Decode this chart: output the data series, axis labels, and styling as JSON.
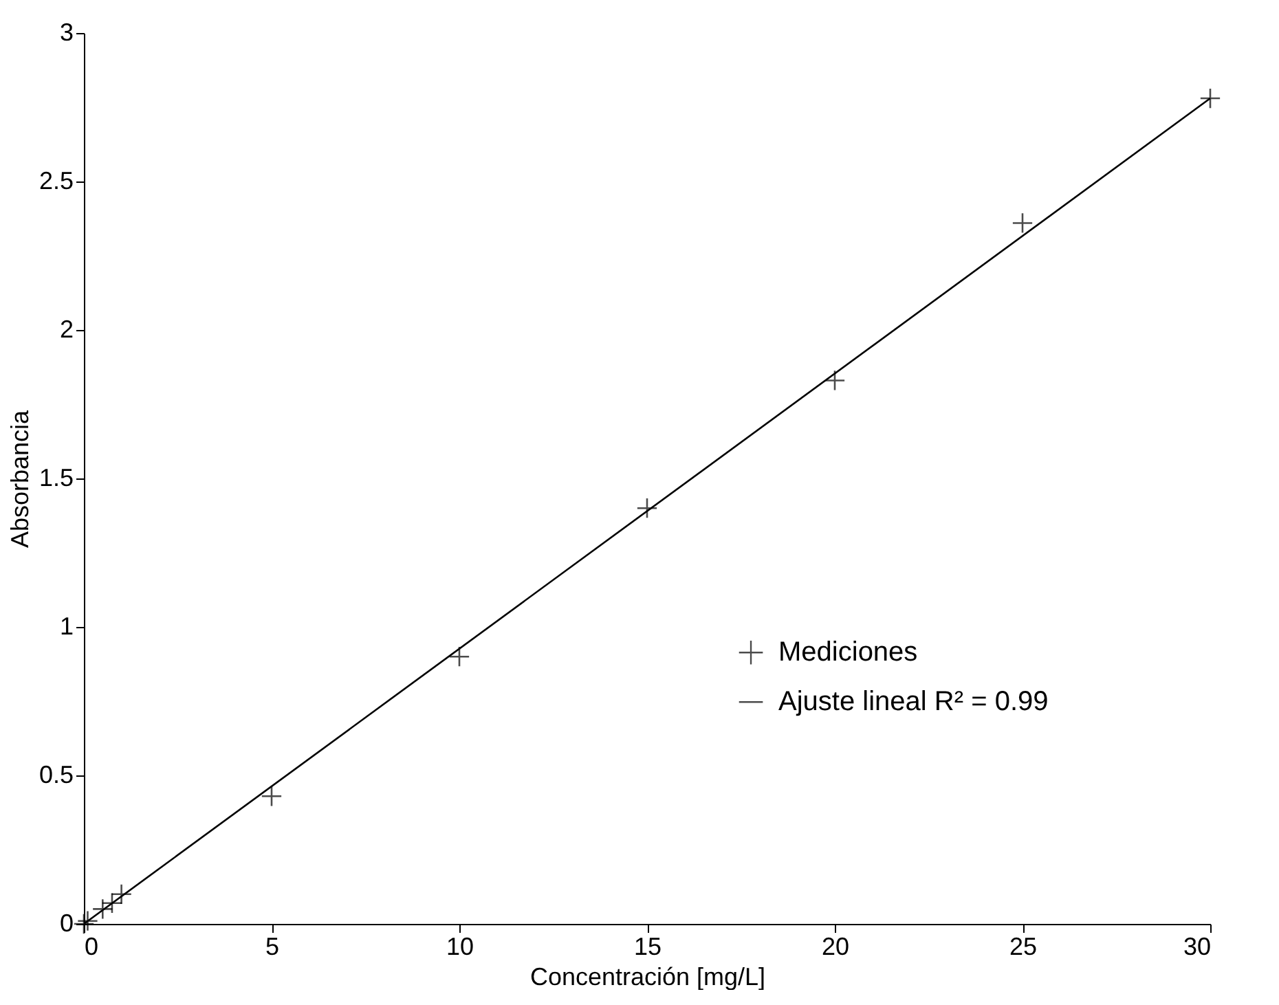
{
  "chart_data": {
    "type": "scatter",
    "xlabel": "Concentración [mg/L]",
    "ylabel": "Absorbancia",
    "xlim": [
      0,
      30
    ],
    "ylim": [
      0,
      3
    ],
    "xticks": [
      0,
      5,
      10,
      15,
      20,
      25,
      30
    ],
    "yticks": [
      0,
      0.5,
      1,
      1.5,
      2,
      2.5,
      3
    ],
    "grid": false,
    "legend": "right",
    "series": [
      {
        "name": "Mediciones",
        "marker": "cross",
        "color": "#000000",
        "x": [
          0,
          0.1,
          0.5,
          0.75,
          1,
          5,
          10,
          15,
          20,
          25,
          30
        ],
        "values": [
          0.0,
          0.01,
          0.05,
          0.07,
          0.1,
          0.43,
          0.9,
          1.4,
          1.83,
          2.36,
          2.78
        ]
      },
      {
        "name": "Ajuste lineal R² = 0.99",
        "type": "line",
        "line_style": "solid",
        "color": "#000000",
        "x": [
          0,
          30
        ],
        "values": [
          0.0,
          2.78
        ]
      }
    ]
  }
}
